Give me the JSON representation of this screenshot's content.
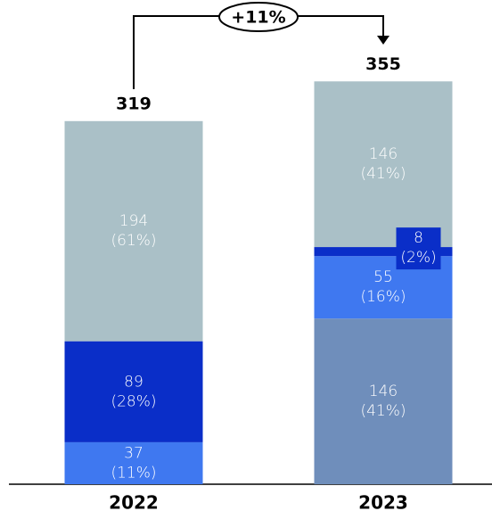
{
  "chart_data": {
    "type": "stacked-bar",
    "categories": [
      "2022",
      "2023"
    ],
    "totals": [
      319,
      355
    ],
    "annotation": "+11%",
    "ylim": [
      0,
      400
    ],
    "series": [
      {
        "color": "#6f8ebb",
        "values": [
          null,
          146
        ],
        "share_labels": [
          null,
          "(41%)"
        ]
      },
      {
        "color": "#3f78f0",
        "values": [
          37,
          55
        ],
        "share_labels": [
          "(11%)",
          "(16%)"
        ]
      },
      {
        "color": "#0a2ec8",
        "values": [
          89,
          8
        ],
        "share_labels": [
          "(28%)",
          "(2%)"
        ]
      },
      {
        "color": "#aac0c7",
        "values": [
          194,
          146
        ],
        "share_labels": [
          "(61%)",
          "(41%)"
        ]
      }
    ]
  }
}
